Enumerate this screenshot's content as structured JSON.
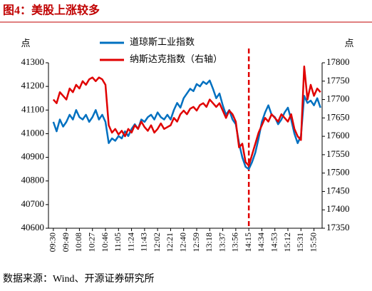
{
  "title": "图4：美股上涨较多",
  "source": "数据来源：Wind、开源证券研究所",
  "chart_data": {
    "type": "line",
    "ylabel": "点",
    "y2label": "点",
    "categories": [
      "09:30",
      null,
      null,
      null,
      "09:49",
      null,
      null,
      null,
      "10:08",
      null,
      null,
      null,
      "10:27",
      null,
      null,
      null,
      "10:46",
      null,
      null,
      null,
      "11:05",
      null,
      null,
      null,
      "11:24",
      null,
      null,
      null,
      "11:43",
      null,
      null,
      null,
      "12:02",
      null,
      null,
      null,
      "12:21",
      null,
      null,
      null,
      "12:40",
      null,
      null,
      null,
      "12:59",
      null,
      null,
      null,
      "13:18",
      null,
      null,
      null,
      "13:37",
      null,
      null,
      null,
      "13:56",
      null,
      null,
      null,
      "14:15",
      null,
      null,
      null,
      "14:34",
      null,
      null,
      null,
      "14:53",
      null,
      null,
      null,
      "15:12",
      null,
      null,
      null,
      "15:31",
      null,
      null,
      null,
      "15:50",
      null,
      null
    ],
    "series": [
      {
        "name": "道琼斯工业指数",
        "color": "#0070c0",
        "axis": "y",
        "values": [
          41050,
          41010,
          41060,
          41030,
          41050,
          41080,
          41060,
          41100,
          41070,
          41060,
          41080,
          41050,
          41070,
          41100,
          41060,
          41080,
          41050,
          40960,
          40980,
          40970,
          40990,
          40980,
          41010,
          40990,
          41020,
          41040,
          41020,
          41060,
          41050,
          41070,
          41080,
          41060,
          41090,
          41070,
          41060,
          41080,
          41060,
          41100,
          41130,
          41110,
          41150,
          41170,
          41190,
          41180,
          41210,
          41200,
          41220,
          41210,
          41225,
          41190,
          41150,
          41170,
          41120,
          41080,
          41100,
          41060,
          41040,
          40960,
          40900,
          40860,
          40850,
          40880,
          40920,
          40980,
          41050,
          41090,
          41120,
          41080,
          41070,
          41040,
          41060,
          41090,
          41110,
          41060,
          41000,
          40960,
          40990,
          41160,
          41130,
          41140,
          41120,
          41150,
          41110
        ]
      },
      {
        "name": "纳斯达克指数（右轴）",
        "color": "#e00000",
        "axis": "y2",
        "values": [
          17700,
          17690,
          17720,
          17710,
          17700,
          17730,
          17720,
          17740,
          17730,
          17750,
          17740,
          17755,
          17760,
          17750,
          17760,
          17755,
          17740,
          17630,
          17610,
          17620,
          17605,
          17615,
          17600,
          17620,
          17610,
          17630,
          17620,
          17640,
          17625,
          17615,
          17630,
          17610,
          17620,
          17635,
          17620,
          17625,
          17630,
          17650,
          17640,
          17660,
          17670,
          17660,
          17675,
          17680,
          17670,
          17685,
          17690,
          17680,
          17700,
          17690,
          17680,
          17690,
          17670,
          17650,
          17670,
          17660,
          17640,
          17570,
          17580,
          17530,
          17520,
          17550,
          17580,
          17610,
          17630,
          17650,
          17640,
          17660,
          17650,
          17640,
          17660,
          17650,
          17640,
          17660,
          17620,
          17600,
          17590,
          17790,
          17700,
          17740,
          17710,
          17730,
          17720
        ]
      }
    ],
    "ylim": [
      40600,
      41300
    ],
    "yticks": [
      40600,
      40700,
      40800,
      40900,
      41000,
      41100,
      41200,
      41300
    ],
    "y2lim": [
      17350,
      17800
    ],
    "y2ticks": [
      17350,
      17400,
      17450,
      17500,
      17550,
      17600,
      17650,
      17700,
      17750,
      17800
    ],
    "vline": {
      "x": "14:15",
      "color": "#e00000",
      "style": "dashed"
    },
    "legend": "upper-left"
  }
}
